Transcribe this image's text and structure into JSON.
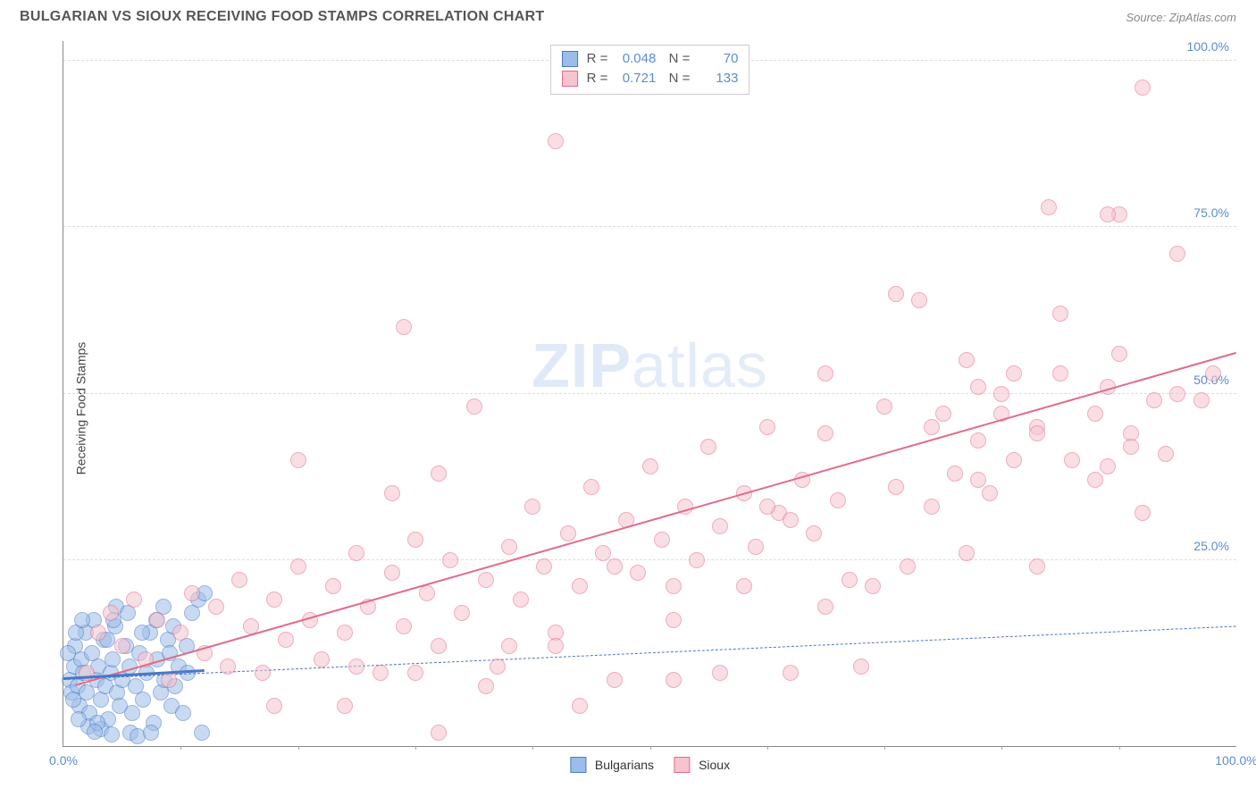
{
  "header": {
    "title": "BULGARIAN VS SIOUX RECEIVING FOOD STAMPS CORRELATION CHART",
    "source_prefix": "Source: ",
    "source_link": "ZipAtlas.com"
  },
  "chart": {
    "type": "scatter",
    "ylabel": "Receiving Food Stamps",
    "background_color": "#ffffff",
    "grid_color": "#dddddd",
    "axis_color": "#888888",
    "label_color": "#5b8bd4",
    "xlim": [
      0,
      100
    ],
    "ylim": [
      -3,
      103
    ],
    "x_ticks_major": [
      0,
      100
    ],
    "x_tick_labels": {
      "0": "0.0%",
      "100": "100.0%"
    },
    "x_ticks_minor_step": 10,
    "y_ticks": [
      25,
      50,
      75,
      100
    ],
    "y_tick_labels": {
      "25": "25.0%",
      "50": "50.0%",
      "75": "75.0%",
      "100": "100.0%"
    },
    "watermark": {
      "bold": "ZIP",
      "light": "atlas"
    },
    "marker_radius": 9,
    "marker_opacity": 0.55,
    "series": [
      {
        "name": "Bulgarians",
        "fill": "#9cbde8",
        "stroke": "#4a78c4",
        "R": "0.048",
        "N": "70",
        "regression": {
          "x1": 0,
          "y1": 7,
          "x2": 100,
          "y2": 15,
          "style": "dashed",
          "width": 1.5
        },
        "short_regression": {
          "x1": 0,
          "y1": 7,
          "x2": 12,
          "y2": 8.2,
          "style": "solid",
          "width": 3
        },
        "points": [
          [
            0.5,
            7
          ],
          [
            0.7,
            5
          ],
          [
            0.9,
            9
          ],
          [
            1,
            12
          ],
          [
            1.2,
            6
          ],
          [
            1.4,
            3
          ],
          [
            1.5,
            10
          ],
          [
            1.7,
            8
          ],
          [
            1.9,
            14
          ],
          [
            2,
            5
          ],
          [
            2.2,
            2
          ],
          [
            2.4,
            11
          ],
          [
            2.6,
            16
          ],
          [
            2.8,
            7
          ],
          [
            3,
            9
          ],
          [
            3.2,
            4
          ],
          [
            3.4,
            13
          ],
          [
            3.6,
            6
          ],
          [
            3.8,
            1
          ],
          [
            4,
            8
          ],
          [
            4.2,
            10
          ],
          [
            4.4,
            15
          ],
          [
            4.6,
            5
          ],
          [
            4.8,
            3
          ],
          [
            5,
            7
          ],
          [
            5.3,
            12
          ],
          [
            5.6,
            9
          ],
          [
            5.9,
            2
          ],
          [
            6.2,
            6
          ],
          [
            6.5,
            11
          ],
          [
            6.8,
            4
          ],
          [
            7.1,
            8
          ],
          [
            7.4,
            14
          ],
          [
            7.7,
            0.5
          ],
          [
            8,
            10
          ],
          [
            8.3,
            5
          ],
          [
            8.6,
            7
          ],
          [
            8.9,
            13
          ],
          [
            9.2,
            3
          ],
          [
            9.5,
            6
          ],
          [
            9.8,
            9
          ],
          [
            10.2,
            2
          ],
          [
            10.6,
            8
          ],
          [
            11,
            17
          ],
          [
            11.5,
            19
          ],
          [
            12,
            20
          ],
          [
            4.5,
            18
          ],
          [
            3.2,
            -0.5
          ],
          [
            5.7,
            -1
          ],
          [
            6.3,
            -1.5
          ],
          [
            7.5,
            -1
          ],
          [
            2.1,
            0
          ],
          [
            2.9,
            0.5
          ],
          [
            3.7,
            13
          ],
          [
            4.3,
            16
          ],
          [
            5.5,
            17
          ],
          [
            6.7,
            14
          ],
          [
            7.9,
            16
          ],
          [
            8.5,
            18
          ],
          [
            9.4,
            15
          ],
          [
            1.1,
            14
          ],
          [
            1.6,
            16
          ],
          [
            0.4,
            11
          ],
          [
            0.8,
            4
          ],
          [
            1.3,
            1
          ],
          [
            2.7,
            -0.8
          ],
          [
            4.1,
            -1.2
          ],
          [
            11.8,
            -1
          ],
          [
            10.5,
            12
          ],
          [
            9.1,
            11
          ]
        ]
      },
      {
        "name": "Sioux",
        "fill": "#f5c4cf",
        "stroke": "#e26b8a",
        "R": "0.721",
        "N": "133",
        "regression": {
          "x1": 1,
          "y1": 6,
          "x2": 100,
          "y2": 56,
          "style": "solid",
          "width": 2.5
        },
        "points": [
          [
            2,
            8
          ],
          [
            3,
            14
          ],
          [
            4,
            17
          ],
          [
            5,
            12
          ],
          [
            6,
            19
          ],
          [
            7,
            10
          ],
          [
            8,
            16
          ],
          [
            9,
            7
          ],
          [
            10,
            14
          ],
          [
            11,
            20
          ],
          [
            12,
            11
          ],
          [
            13,
            18
          ],
          [
            14,
            9
          ],
          [
            15,
            22
          ],
          [
            16,
            15
          ],
          [
            17,
            8
          ],
          [
            18,
            19
          ],
          [
            19,
            13
          ],
          [
            20,
            24
          ],
          [
            21,
            16
          ],
          [
            22,
            10
          ],
          [
            23,
            21
          ],
          [
            24,
            14
          ],
          [
            25,
            26
          ],
          [
            26,
            18
          ],
          [
            27,
            8
          ],
          [
            28,
            23
          ],
          [
            29,
            15
          ],
          [
            30,
            28
          ],
          [
            31,
            20
          ],
          [
            32,
            12
          ],
          [
            33,
            25
          ],
          [
            34,
            17
          ],
          [
            35,
            48
          ],
          [
            36,
            22
          ],
          [
            37,
            9
          ],
          [
            38,
            27
          ],
          [
            39,
            19
          ],
          [
            40,
            33
          ],
          [
            41,
            24
          ],
          [
            42,
            14
          ],
          [
            43,
            29
          ],
          [
            44,
            21
          ],
          [
            45,
            36
          ],
          [
            46,
            26
          ],
          [
            47,
            7
          ],
          [
            48,
            31
          ],
          [
            49,
            23
          ],
          [
            50,
            39
          ],
          [
            51,
            28
          ],
          [
            52,
            16
          ],
          [
            53,
            33
          ],
          [
            54,
            25
          ],
          [
            55,
            42
          ],
          [
            56,
            30
          ],
          [
            29,
            60
          ],
          [
            58,
            35
          ],
          [
            59,
            27
          ],
          [
            60,
            45
          ],
          [
            61,
            32
          ],
          [
            62,
            8
          ],
          [
            63,
            37
          ],
          [
            64,
            29
          ],
          [
            65,
            18
          ],
          [
            66,
            34
          ],
          [
            67,
            22
          ],
          [
            38,
            12
          ],
          [
            69,
            21
          ],
          [
            70,
            48
          ],
          [
            71,
            36
          ],
          [
            72,
            24
          ],
          [
            28,
            35
          ],
          [
            74,
            33
          ],
          [
            75,
            47
          ],
          [
            76,
            38
          ],
          [
            77,
            26
          ],
          [
            78,
            43
          ],
          [
            79,
            35
          ],
          [
            80,
            50
          ],
          [
            81,
            40
          ],
          [
            32,
            38
          ],
          [
            83,
            45
          ],
          [
            20,
            40
          ],
          [
            85,
            53
          ],
          [
            42,
            88
          ],
          [
            32,
            -1
          ],
          [
            88,
            47
          ],
          [
            89,
            39
          ],
          [
            90,
            56
          ],
          [
            91,
            44
          ],
          [
            92,
            32
          ],
          [
            93,
            49
          ],
          [
            94,
            41
          ],
          [
            95,
            71
          ],
          [
            65,
            53
          ],
          [
            97,
            49
          ],
          [
            78,
            51
          ],
          [
            83,
            24
          ],
          [
            73,
            64
          ],
          [
            90,
            77
          ],
          [
            42,
            12
          ],
          [
            44,
            3
          ],
          [
            47,
            24
          ],
          [
            52,
            21
          ],
          [
            56,
            8
          ],
          [
            58,
            21
          ],
          [
            62,
            31
          ],
          [
            65,
            44
          ],
          [
            68,
            9
          ],
          [
            71,
            65
          ],
          [
            74,
            45
          ],
          [
            77,
            55
          ],
          [
            80,
            47
          ],
          [
            83,
            44
          ],
          [
            60,
            33
          ],
          [
            89,
            77
          ],
          [
            92,
            96
          ],
          [
            95,
            50
          ],
          [
            98,
            53
          ],
          [
            85,
            62
          ],
          [
            88,
            37
          ],
          [
            91,
            42
          ],
          [
            18,
            3
          ],
          [
            24,
            3
          ],
          [
            30,
            8
          ],
          [
            36,
            6
          ],
          [
            52,
            7
          ],
          [
            25,
            9
          ],
          [
            84,
            78
          ],
          [
            86,
            40
          ],
          [
            89,
            51
          ],
          [
            78,
            37
          ],
          [
            81,
            53
          ]
        ]
      }
    ],
    "legend_bottom": [
      {
        "label": "Bulgarians",
        "fill": "#9cbde8",
        "stroke": "#4a78c4"
      },
      {
        "label": "Sioux",
        "fill": "#f5c4cf",
        "stroke": "#e26b8a"
      }
    ]
  }
}
